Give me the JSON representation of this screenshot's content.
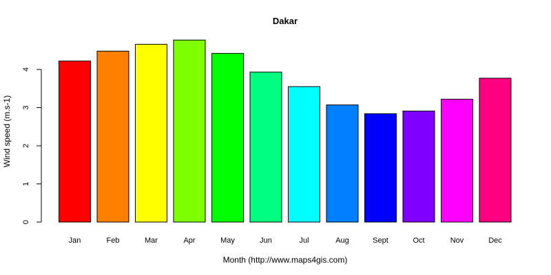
{
  "chart_data": {
    "type": "bar",
    "title": "Dakar",
    "xlabel": "Month (http://www.maps4gis.com)",
    "ylabel": "Wind speed (m.s-1)",
    "categories": [
      "Jan",
      "Feb",
      "Mar",
      "Apr",
      "May",
      "Jun",
      "Jul",
      "Aug",
      "Sept",
      "Oct",
      "Nov",
      "Dec"
    ],
    "values": [
      4.22,
      4.48,
      4.66,
      4.77,
      4.42,
      3.93,
      3.55,
      3.07,
      2.84,
      2.91,
      3.22,
      3.77
    ],
    "colors": [
      "#FF0000",
      "#FF8000",
      "#FFFF00",
      "#80FF00",
      "#00FF00",
      "#00FF80",
      "#00FFFF",
      "#0080FF",
      "#0000FF",
      "#8000FF",
      "#FF00FF",
      "#FF0080"
    ],
    "yticks": [
      0,
      1,
      2,
      3,
      4
    ],
    "ylim": [
      0,
      4.9
    ],
    "grid": false,
    "legend": "none"
  }
}
